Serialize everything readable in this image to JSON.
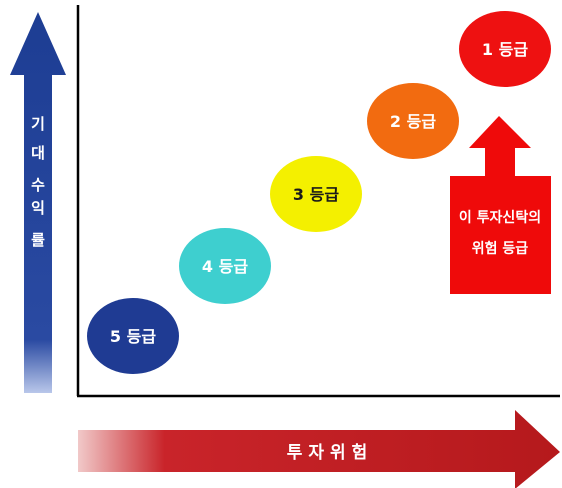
{
  "y_axis": {
    "label_chars": [
      "기",
      "대",
      "수",
      "익",
      "률"
    ]
  },
  "x_axis": {
    "label": "투자위험"
  },
  "grades": [
    {
      "label": "5 등급",
      "fill": "#1f3b93",
      "text_color": "#ffffff"
    },
    {
      "label": "4 등급",
      "fill": "#3ecfcf",
      "text_color": "#ffffff"
    },
    {
      "label": "3 등급",
      "fill": "#f4f000",
      "text_color": "#1a1a1a"
    },
    {
      "label": "2 등급",
      "fill": "#f26b10",
      "text_color": "#ffffff"
    },
    {
      "label": "1 등급",
      "fill": "#ee1111",
      "text_color": "#ffffff"
    }
  ],
  "callout": {
    "line1": "이 투자신탁의",
    "line2": "위험 등급",
    "fill": "#ef0a0a"
  },
  "colors": {
    "y_arrow": "#1d3d93",
    "x_arrow": "#b5191c",
    "axes": "#000000"
  }
}
